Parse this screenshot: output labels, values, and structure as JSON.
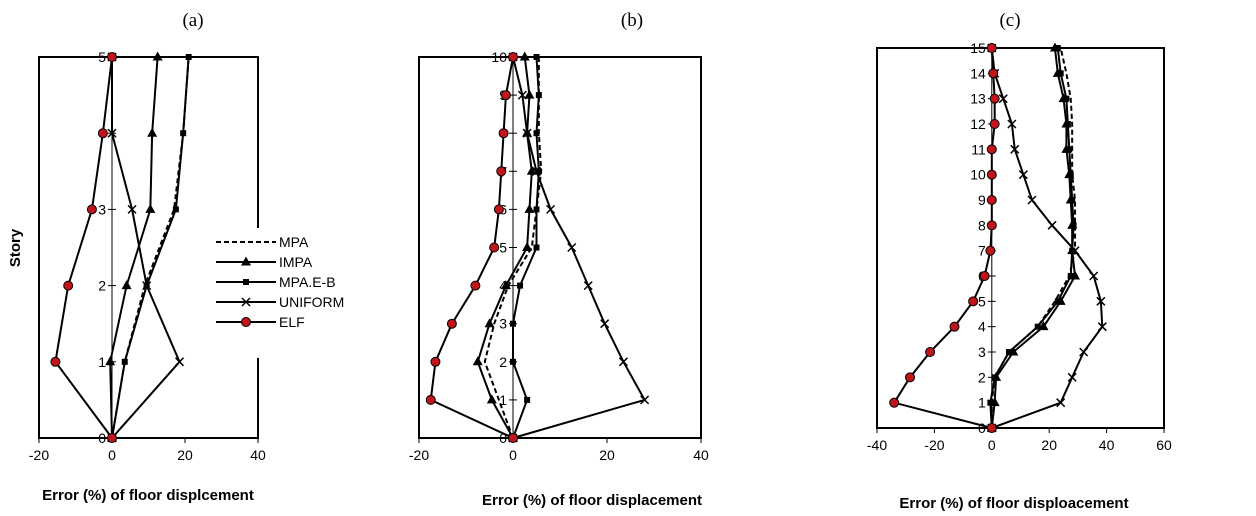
{
  "colors": {
    "line": "#000000",
    "elf_fill": "#c0161b",
    "background": "#ffffff"
  },
  "legend": {
    "entries": [
      {
        "name": "MPA",
        "style": "dashed",
        "marker": "none"
      },
      {
        "name": "IMPA",
        "style": "solid",
        "marker": "triangle"
      },
      {
        "name": "MPA.E-B",
        "style": "solid",
        "marker": "square"
      },
      {
        "name": "UNIFORM",
        "style": "solid",
        "marker": "cross"
      },
      {
        "name": "ELF",
        "style": "solid",
        "marker": "circle"
      }
    ],
    "placement": "inside panel (a), right of center"
  },
  "chart_data": [
    {
      "type": "line",
      "title": "(a)",
      "xlabel": "Error (%) of floor displcement",
      "ylabel": "Story",
      "xlim": [
        -20,
        40
      ],
      "ylim": [
        0,
        5
      ],
      "xticks": [
        -20,
        0,
        20,
        40
      ],
      "yticks": [
        0,
        1,
        2,
        3,
        4,
        5
      ],
      "grid": false,
      "series": [
        {
          "name": "MPA",
          "x": [
            0,
            3.5,
            9,
            17,
            19.5,
            21
          ],
          "y": [
            0,
            1,
            2,
            3,
            4,
            5
          ]
        },
        {
          "name": "IMPA",
          "x": [
            0,
            -0.5,
            4,
            10.5,
            11,
            12.5
          ],
          "y": [
            0,
            1,
            2,
            3,
            4,
            5
          ]
        },
        {
          "name": "MPA.E-B",
          "x": [
            0,
            3.5,
            9.5,
            17.5,
            19.5,
            21
          ],
          "y": [
            0,
            1,
            2,
            3,
            4,
            5
          ]
        },
        {
          "name": "UNIFORM",
          "x": [
            0,
            18.5,
            9.5,
            5.5,
            0,
            0
          ],
          "y": [
            0,
            1,
            2,
            3,
            4,
            5
          ]
        },
        {
          "name": "ELF",
          "x": [
            0,
            -15.5,
            -12,
            -5.5,
            -2.5,
            0
          ],
          "y": [
            0,
            1,
            2,
            3,
            4,
            5
          ]
        }
      ]
    },
    {
      "type": "line",
      "title": "(b)",
      "xlabel": "Error (%) of floor displacement",
      "ylabel": "",
      "xlim": [
        -20,
        40
      ],
      "ylim": [
        0,
        10
      ],
      "xticks": [
        -20,
        0,
        20,
        40
      ],
      "yticks": [
        0,
        1,
        2,
        3,
        4,
        5,
        6,
        7,
        8,
        9,
        10
      ],
      "grid": false,
      "series": [
        {
          "name": "MPA",
          "x": [
            0,
            -3,
            -6,
            -4,
            -1,
            4,
            5,
            6,
            5.5,
            5.5,
            5.5
          ],
          "y": [
            0,
            1,
            2,
            3,
            4,
            5,
            6,
            7,
            8,
            9,
            10
          ]
        },
        {
          "name": "IMPA",
          "x": [
            0,
            -4.5,
            -7.5,
            -5,
            -1.5,
            3,
            3.5,
            4,
            3,
            3.5,
            2.5
          ],
          "y": [
            0,
            1,
            2,
            3,
            4,
            5,
            6,
            7,
            8,
            9,
            10
          ]
        },
        {
          "name": "MPA.E-B",
          "x": [
            0,
            3,
            0,
            0,
            1.5,
            5,
            5,
            5.5,
            5,
            5.5,
            5
          ],
          "y": [
            0,
            1,
            2,
            3,
            4,
            5,
            6,
            7,
            8,
            9,
            10
          ]
        },
        {
          "name": "UNIFORM",
          "x": [
            0,
            28,
            23.5,
            19.5,
            16,
            12.5,
            8,
            5,
            3,
            2,
            0
          ],
          "y": [
            0,
            1,
            2,
            3,
            4,
            5,
            6,
            7,
            8,
            9,
            10
          ]
        },
        {
          "name": "ELF",
          "x": [
            0,
            -17.5,
            -16.5,
            -13,
            -8,
            -4,
            -3,
            -2.5,
            -2,
            -1.5,
            0
          ],
          "y": [
            0,
            1,
            2,
            3,
            4,
            5,
            6,
            7,
            8,
            9,
            10
          ]
        }
      ]
    },
    {
      "type": "line",
      "title": "(c)",
      "xlabel": "Error (%) of floor disploacement",
      "ylabel": "",
      "xlim": [
        -40,
        60
      ],
      "ylim": [
        0,
        15
      ],
      "xticks": [
        -40,
        -20,
        0,
        20,
        40,
        60
      ],
      "yticks": [
        0,
        1,
        2,
        3,
        4,
        5,
        6,
        7,
        8,
        9,
        10,
        11,
        12,
        13,
        14,
        15
      ],
      "grid": false,
      "series": [
        {
          "name": "MPA",
          "x": [
            0,
            0,
            1,
            6,
            16,
            22,
            27,
            29,
            29,
            29,
            28,
            28,
            28,
            27.5,
            26,
            24
          ],
          "y": [
            0,
            1,
            2,
            3,
            4,
            5,
            6,
            7,
            8,
            9,
            10,
            11,
            12,
            13,
            14,
            15
          ]
        },
        {
          "name": "IMPA",
          "x": [
            0,
            1,
            1.5,
            7.5,
            18,
            24,
            29,
            28,
            28,
            27.5,
            27,
            26,
            26,
            25,
            23,
            22
          ],
          "y": [
            0,
            1,
            2,
            3,
            4,
            5,
            6,
            7,
            8,
            9,
            10,
            11,
            12,
            13,
            14,
            15
          ]
        },
        {
          "name": "MPA.E-B",
          "x": [
            0,
            -0.5,
            1,
            6,
            16,
            23,
            27.5,
            28,
            28.5,
            28,
            27.5,
            27,
            26.5,
            26,
            24,
            23
          ],
          "y": [
            0,
            1,
            2,
            3,
            4,
            5,
            6,
            7,
            8,
            9,
            10,
            11,
            12,
            13,
            14,
            15
          ]
        },
        {
          "name": "UNIFORM",
          "x": [
            0,
            24,
            28,
            32,
            38.5,
            38,
            35.5,
            29,
            21,
            14,
            11,
            8,
            7,
            4,
            1,
            0
          ],
          "y": [
            0,
            1,
            2,
            3,
            4,
            5,
            6,
            7,
            8,
            9,
            10,
            11,
            12,
            13,
            14,
            15
          ]
        },
        {
          "name": "ELF",
          "x": [
            0,
            -34,
            -28.5,
            -21.5,
            -13,
            -6.5,
            -2.5,
            -0.5,
            0,
            0,
            0,
            0,
            1,
            1,
            0.5,
            0
          ],
          "y": [
            0,
            1,
            2,
            3,
            4,
            5,
            6,
            7,
            8,
            9,
            10,
            11,
            12,
            13,
            14,
            15
          ]
        }
      ]
    }
  ]
}
